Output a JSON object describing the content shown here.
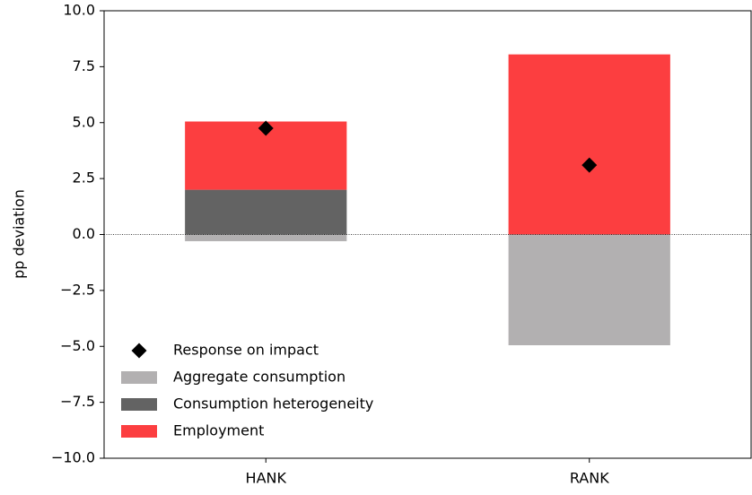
{
  "chart_data": {
    "type": "stacked-bar",
    "ylabel": "pp deviation",
    "categories": [
      "HANK",
      "RANK"
    ],
    "series": [
      {
        "name": "Aggregate consumption",
        "color": "#b2b0b1",
        "values": [
          -0.3,
          -4.95
        ]
      },
      {
        "name": "Consumption heterogeneity",
        "color": "#636363",
        "values": [
          2.0,
          0
        ]
      },
      {
        "name": "Employment",
        "color": "#fc3e40",
        "values": [
          3.05,
          8.05
        ]
      }
    ],
    "markers": {
      "name": "Response on impact",
      "color": "#000000",
      "values": [
        4.75,
        3.1
      ]
    },
    "ylim": [
      -10,
      10
    ],
    "yticks": [
      {
        "value": -10,
        "label": "−10.0"
      },
      {
        "value": -7.5,
        "label": "−7.5"
      },
      {
        "value": -5,
        "label": "−5.0"
      },
      {
        "value": -2.5,
        "label": "−2.5"
      },
      {
        "value": 0,
        "label": "0.0"
      },
      2.5,
      {
        "value": 5,
        "label": "5.0"
      },
      7.5,
      {
        "value": 10,
        "label": "10.0"
      }
    ],
    "zero_line": true,
    "legend": "lower left"
  }
}
